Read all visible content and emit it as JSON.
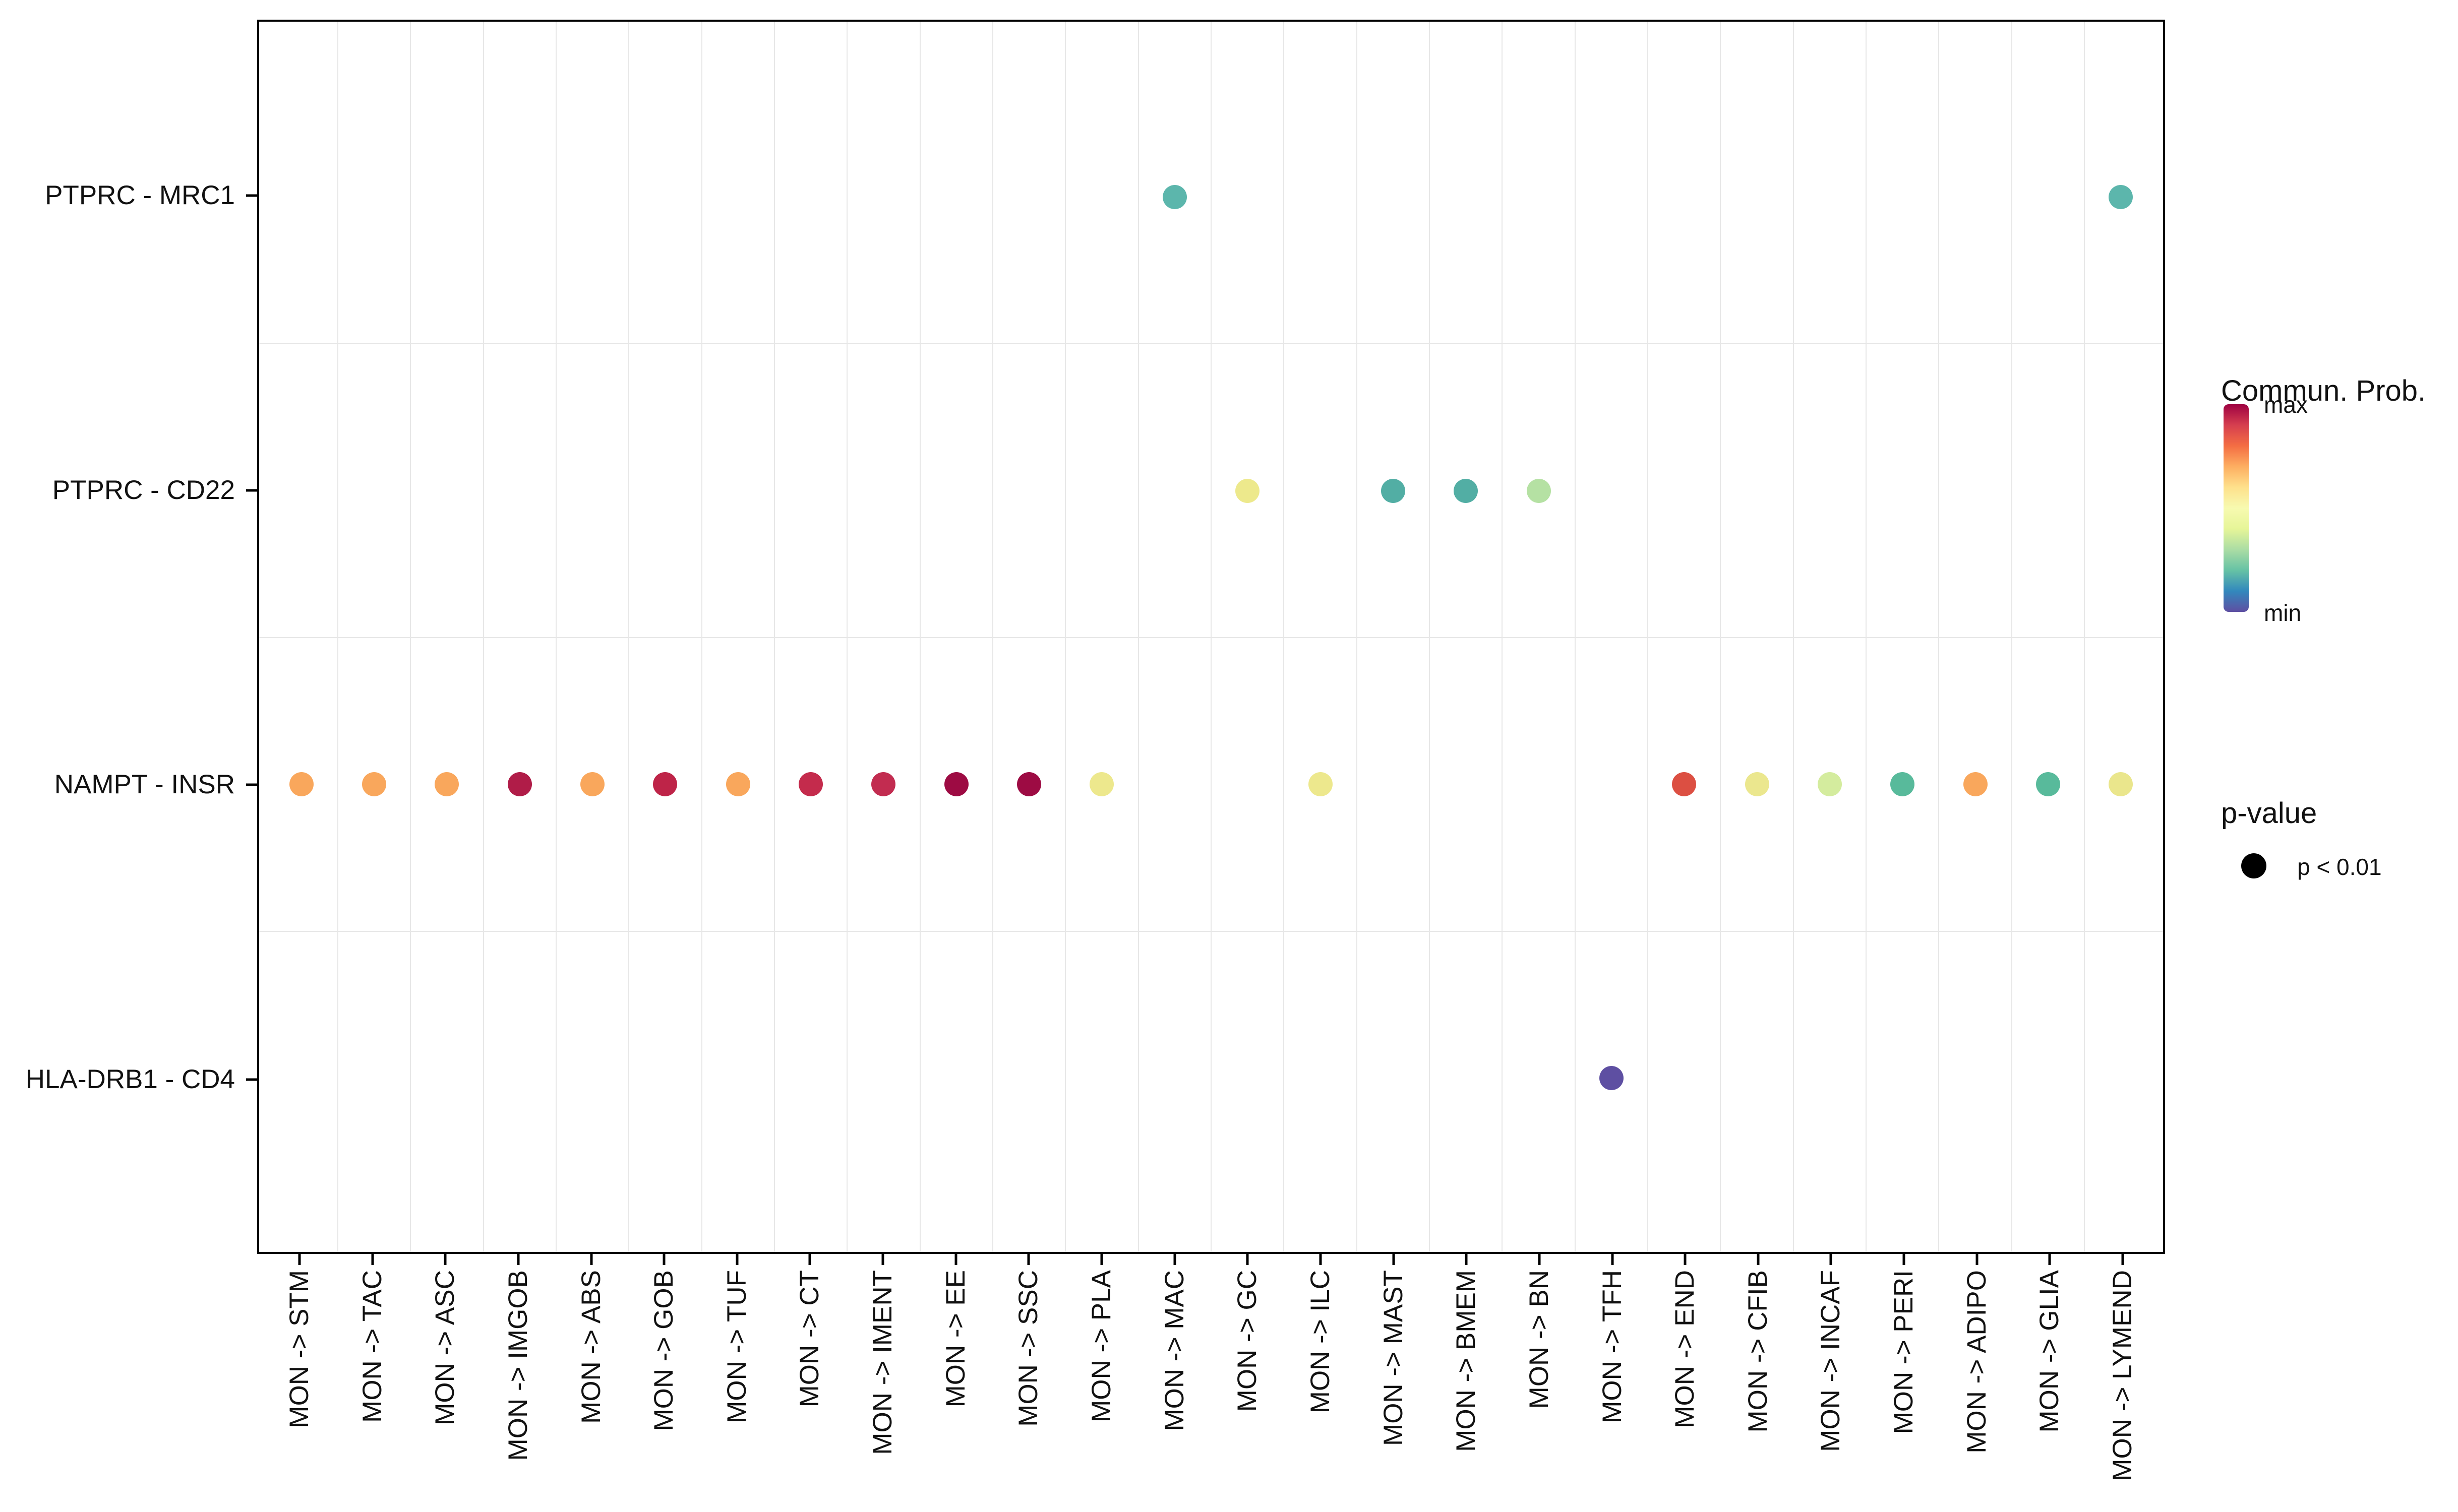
{
  "figure": {
    "colors": {
      "background": "#FFFFFF",
      "panel_border": "#000000",
      "grid": "#E7E7E7",
      "text": "#111111",
      "tick": "#000000"
    },
    "legend": {
      "commun_prob": {
        "title": "Commun. Prob.",
        "max_label": "max",
        "min_label": "min",
        "gradient_colors": [
          "#9E0142",
          "#D53E4F",
          "#F46D43",
          "#FDAE61",
          "#FEE08B",
          "#F7FAB0",
          "#E6F598",
          "#ABDDA4",
          "#66C2A5",
          "#3288BD",
          "#5E4FA2"
        ]
      },
      "p_value": {
        "title": "p-value",
        "item_label": "p < 0.01"
      }
    }
  },
  "chart_data": {
    "type": "scatter",
    "title": "",
    "xlabel": "",
    "ylabel": "",
    "grid": "minor gridlines at category boundaries, both axes",
    "legend_position": "right",
    "color_scale": {
      "name": "Spectral reversed",
      "min_label": "min",
      "max_label": "max"
    },
    "point_p_value": "p < 0.01",
    "x_categories": [
      "MON -> STM",
      "MON -> TAC",
      "MON -> ASC",
      "MON -> IMGOB",
      "MON -> ABS",
      "MON -> GOB",
      "MON -> TUF",
      "MON -> CT",
      "MON -> IMENT",
      "MON -> EE",
      "MON -> SSC",
      "MON -> PLA",
      "MON -> MAC",
      "MON -> GC",
      "MON -> ILC",
      "MON -> MAST",
      "MON -> BMEM",
      "MON -> BN",
      "MON -> TFH",
      "MON -> END",
      "MON -> CFIB",
      "MON -> INCAF",
      "MON -> PERI",
      "MON -> ADIPO",
      "MON -> GLIA",
      "MON -> LYMEND"
    ],
    "y_categories": [
      "PTPRC - MRC1",
      "PTPRC - CD22",
      "NAMPT - INSR",
      "HLA-DRB1 - CD4"
    ],
    "points": [
      {
        "x": "MON -> MAC",
        "y": "PTPRC - MRC1",
        "color": "#5CB6AC",
        "prob_est": 0.25
      },
      {
        "x": "MON -> LYMEND",
        "y": "PTPRC - MRC1",
        "color": "#5CB6AC",
        "prob_est": 0.25
      },
      {
        "x": "MON -> GC",
        "y": "PTPRC - CD22",
        "color": "#EDE98C",
        "prob_est": 0.5
      },
      {
        "x": "MON -> MAST",
        "y": "PTPRC - CD22",
        "color": "#52AEA4",
        "prob_est": 0.22
      },
      {
        "x": "MON -> BMEM",
        "y": "PTPRC - CD22",
        "color": "#52AEA4",
        "prob_est": 0.22
      },
      {
        "x": "MON -> BN",
        "y": "PTPRC - CD22",
        "color": "#B5E1A3",
        "prob_est": 0.4
      },
      {
        "x": "MON -> STM",
        "y": "NAMPT - INSR",
        "color": "#F9A75C",
        "prob_est": 0.72
      },
      {
        "x": "MON -> TAC",
        "y": "NAMPT - INSR",
        "color": "#F9A75C",
        "prob_est": 0.72
      },
      {
        "x": "MON -> ASC",
        "y": "NAMPT - INSR",
        "color": "#F9A75C",
        "prob_est": 0.72
      },
      {
        "x": "MON -> IMGOB",
        "y": "NAMPT - INSR",
        "color": "#B01C48",
        "prob_est": 0.97
      },
      {
        "x": "MON -> ABS",
        "y": "NAMPT - INSR",
        "color": "#F9A75C",
        "prob_est": 0.72
      },
      {
        "x": "MON -> GOB",
        "y": "NAMPT - INSR",
        "color": "#BE2448",
        "prob_est": 0.95
      },
      {
        "x": "MON -> TUF",
        "y": "NAMPT - INSR",
        "color": "#F9A75C",
        "prob_est": 0.72
      },
      {
        "x": "MON -> CT",
        "y": "NAMPT - INSR",
        "color": "#C42B4C",
        "prob_est": 0.93
      },
      {
        "x": "MON -> IMENT",
        "y": "NAMPT - INSR",
        "color": "#C22C50",
        "prob_est": 0.93
      },
      {
        "x": "MON -> EE",
        "y": "NAMPT - INSR",
        "color": "#9D0B43",
        "prob_est": 1.0
      },
      {
        "x": "MON -> SSC",
        "y": "NAMPT - INSR",
        "color": "#9D0B43",
        "prob_est": 1.0
      },
      {
        "x": "MON -> PLA",
        "y": "NAMPT - INSR",
        "color": "#EDE88D",
        "prob_est": 0.5
      },
      {
        "x": "MON -> ILC",
        "y": "NAMPT - INSR",
        "color": "#EDE88D",
        "prob_est": 0.5
      },
      {
        "x": "MON -> END",
        "y": "NAMPT - INSR",
        "color": "#DC4F42",
        "prob_est": 0.85
      },
      {
        "x": "MON -> CFIB",
        "y": "NAMPT - INSR",
        "color": "#EBE78E",
        "prob_est": 0.5
      },
      {
        "x": "MON -> INCAF",
        "y": "NAMPT - INSR",
        "color": "#D4EC9E",
        "prob_est": 0.45
      },
      {
        "x": "MON -> PERI",
        "y": "NAMPT - INSR",
        "color": "#58BA9B",
        "prob_est": 0.28
      },
      {
        "x": "MON -> ADIPO",
        "y": "NAMPT - INSR",
        "color": "#F9A75C",
        "prob_est": 0.72
      },
      {
        "x": "MON -> GLIA",
        "y": "NAMPT - INSR",
        "color": "#58BA9B",
        "prob_est": 0.28
      },
      {
        "x": "MON -> LYMEND",
        "y": "NAMPT - INSR",
        "color": "#EAE68C",
        "prob_est": 0.5
      },
      {
        "x": "MON -> TFH",
        "y": "HLA-DRB1 - CD4",
        "color": "#5E4FA2",
        "prob_est": 0.0
      }
    ]
  }
}
